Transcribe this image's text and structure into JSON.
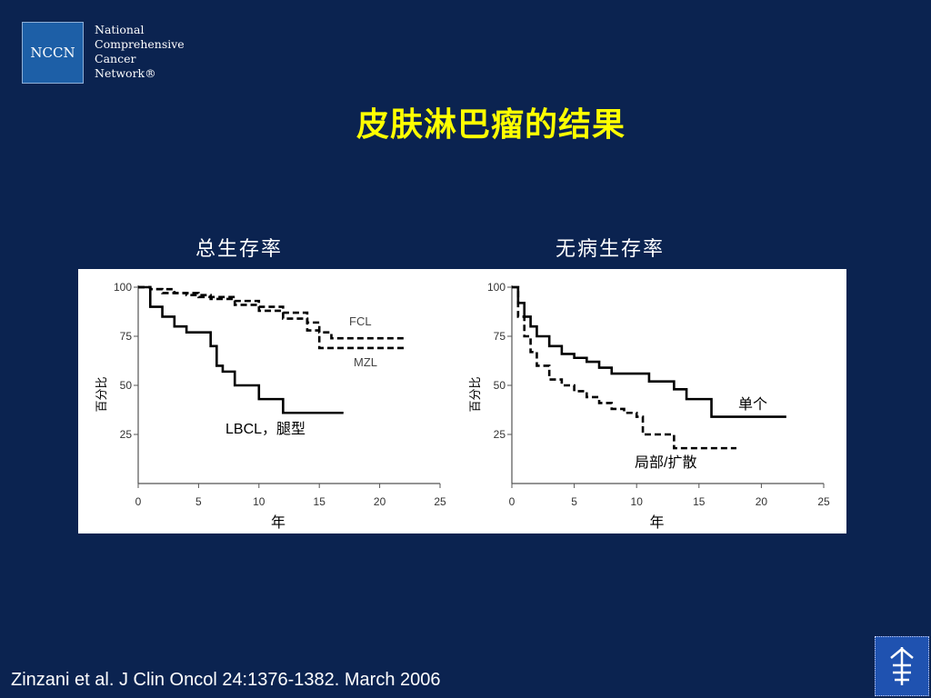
{
  "logo": {
    "abbr": "NCCN",
    "lines": [
      "National",
      "Comprehensive",
      "Cancer",
      "Network®"
    ]
  },
  "title": "皮肤淋巴瘤的结果",
  "citation": "Zinzani et al. J Clin Oncol 24:1376-1382. March 2006",
  "institution_icon": "caduceus-style-emblem",
  "colors": {
    "background": "#0b2350",
    "title": "#ffff00",
    "panel": "#ffffff",
    "curve": "#000000"
  },
  "chart_data": [
    {
      "type": "line",
      "subtitle": "总生存率",
      "xlabel": "年",
      "ylabel": "百分比",
      "xlim": [
        0,
        25
      ],
      "ylim": [
        0,
        100
      ],
      "xticks": [
        0,
        5,
        10,
        15,
        20,
        25
      ],
      "yticks": [
        25,
        50,
        75,
        100
      ],
      "series": [
        {
          "name": "FCL",
          "step": true,
          "dash": "dashed",
          "x": [
            0,
            1,
            3,
            5,
            8,
            10,
            12,
            14,
            15,
            16,
            22
          ],
          "y": [
            100,
            99,
            97,
            95,
            93,
            90,
            87,
            82,
            77,
            74,
            74
          ]
        },
        {
          "name": "MZL",
          "step": true,
          "dash": "dashed",
          "x": [
            0,
            1,
            2,
            4,
            6,
            8,
            10,
            12,
            14,
            15,
            22
          ],
          "y": [
            100,
            99,
            97,
            96,
            94,
            91,
            88,
            84,
            78,
            69,
            69
          ]
        },
        {
          "name": "LBCL，腿型",
          "step": true,
          "dash": "solid",
          "x": [
            0,
            1,
            2,
            3,
            4,
            6,
            6.5,
            7,
            8,
            10,
            12,
            17
          ],
          "y": [
            100,
            90,
            85,
            80,
            77,
            70,
            60,
            57,
            50,
            43,
            36,
            36
          ]
        }
      ],
      "annotations": [
        "FCL",
        "MZL",
        "LBCL，腿型"
      ]
    },
    {
      "type": "line",
      "subtitle": "无病生存率",
      "xlabel": "年",
      "ylabel": "百分比",
      "xlim": [
        0,
        25
      ],
      "ylim": [
        0,
        100
      ],
      "xticks": [
        0,
        5,
        10,
        15,
        20,
        25
      ],
      "yticks": [
        25,
        50,
        75,
        100
      ],
      "series": [
        {
          "name": "单个",
          "step": true,
          "dash": "solid",
          "x": [
            0,
            0.5,
            1,
            1.5,
            2,
            3,
            4,
            5,
            6,
            7,
            8,
            11,
            12,
            13,
            14,
            16,
            22
          ],
          "y": [
            100,
            92,
            85,
            80,
            75,
            70,
            66,
            64,
            62,
            59,
            56,
            52,
            52,
            48,
            43,
            34,
            34
          ]
        },
        {
          "name": "局部/扩散",
          "step": true,
          "dash": "dashed",
          "x": [
            0,
            0.5,
            1,
            1.5,
            2,
            3,
            4,
            5,
            6,
            7,
            8,
            9,
            10,
            10.5,
            13,
            15,
            18
          ],
          "y": [
            100,
            85,
            75,
            67,
            60,
            53,
            50,
            47,
            44,
            41,
            38,
            36,
            34,
            25,
            18,
            18,
            18
          ]
        }
      ],
      "annotations": [
        "单个",
        "局部/扩散"
      ]
    }
  ]
}
